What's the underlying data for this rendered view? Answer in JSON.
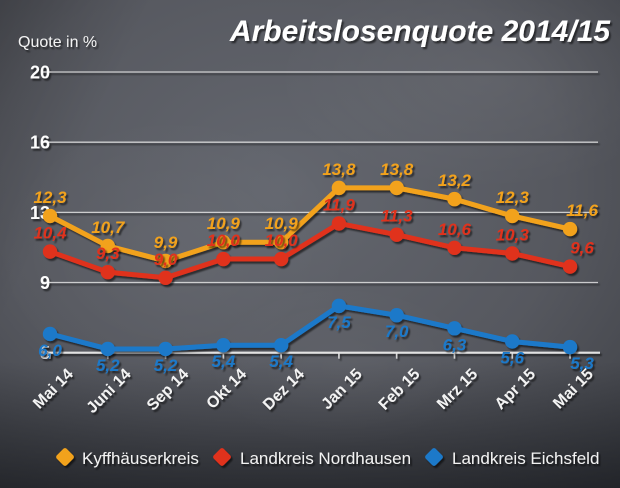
{
  "chart_data": {
    "type": "line",
    "title": "Arbeitslosenquote 2014/15",
    "ylabel": "Quote in %",
    "xlabel": "",
    "categories": [
      "Mai 14",
      "Juni 14",
      "Sep 14",
      "Okt 14",
      "Dez 14",
      "Jan 15",
      "Feb 15",
      "Mrz 15",
      "Apr 15",
      "Mai 15"
    ],
    "series": [
      {
        "name": "Kyffhäuserkreis",
        "color": "#F2A21D",
        "values": [
          12.3,
          10.7,
          9.9,
          10.9,
          10.9,
          13.8,
          13.8,
          13.2,
          12.3,
          11.6
        ]
      },
      {
        "name": "Landkreis Nordhausen",
        "color": "#E0301E",
        "values": [
          10.4,
          9.3,
          9.0,
          10.0,
          10.0,
          11.9,
          11.3,
          10.6,
          10.3,
          9.6
        ]
      },
      {
        "name": "Landkreis Eichsfeld",
        "color": "#1C79C9",
        "values": [
          6.0,
          5.2,
          5.2,
          5.4,
          5.4,
          7.5,
          7.0,
          6.3,
          5.6,
          5.3
        ]
      }
    ],
    "y_ticks": [
      "20",
      "16",
      "13",
      "9",
      "5"
    ],
    "decimal_separator": ",",
    "grid": true,
    "legend_position": "bottom",
    "gridline_color": "#e9e9e9",
    "text_color": "#ffffff"
  }
}
